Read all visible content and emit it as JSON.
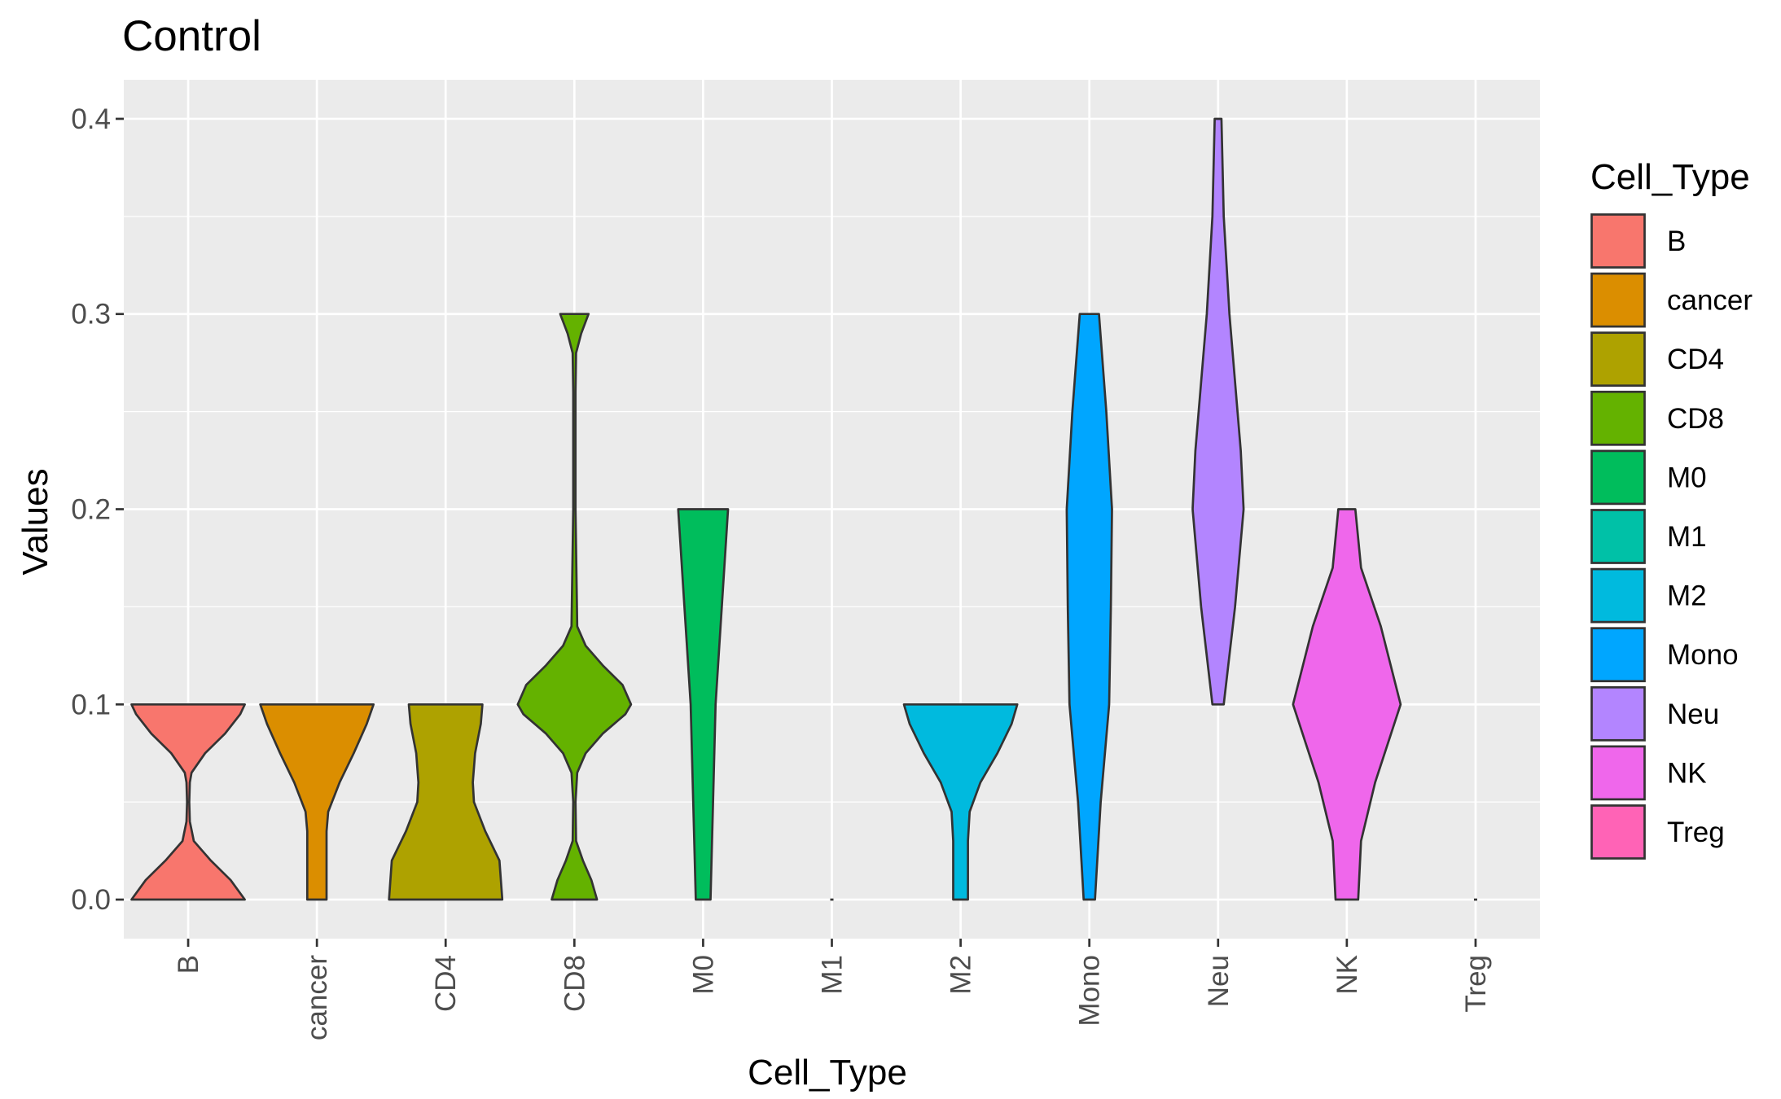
{
  "chart_data": {
    "type": "violin",
    "title": "Control",
    "xlabel": "Cell_Type",
    "ylabel": "Values",
    "ylim": [
      -0.02,
      0.42
    ],
    "yticks": [
      "0.0",
      "0.1",
      "0.2",
      "0.3",
      "0.4"
    ],
    "ytick_values": [
      0.0,
      0.1,
      0.2,
      0.3,
      0.4
    ],
    "grid": true,
    "legend": {
      "title": "Cell_Type",
      "placement": "right"
    },
    "categories": [
      "B",
      "cancer",
      "CD4",
      "CD8",
      "M0",
      "M1",
      "M2",
      "Mono",
      "Neu",
      "NK",
      "Treg"
    ],
    "series": [
      {
        "name": "B",
        "color": "#F8766D",
        "profile": [
          [
            0.0,
            1.0
          ],
          [
            0.01,
            0.75
          ],
          [
            0.02,
            0.4
          ],
          [
            0.03,
            0.1
          ],
          [
            0.04,
            0.03
          ],
          [
            0.05,
            0.02
          ],
          [
            0.06,
            0.03
          ],
          [
            0.065,
            0.06
          ],
          [
            0.075,
            0.3
          ],
          [
            0.085,
            0.65
          ],
          [
            0.095,
            0.92
          ],
          [
            0.1,
            1.0
          ]
        ]
      },
      {
        "name": "cancer",
        "color": "#DB8E00",
        "profile": [
          [
            0.0,
            0.17
          ],
          [
            0.02,
            0.17
          ],
          [
            0.035,
            0.17
          ],
          [
            0.045,
            0.2
          ],
          [
            0.06,
            0.4
          ],
          [
            0.075,
            0.65
          ],
          [
            0.09,
            0.88
          ],
          [
            0.1,
            1.0
          ]
        ]
      },
      {
        "name": "CD4",
        "color": "#AEA200",
        "profile": [
          [
            0.0,
            1.0
          ],
          [
            0.02,
            0.95
          ],
          [
            0.035,
            0.7
          ],
          [
            0.05,
            0.5
          ],
          [
            0.06,
            0.48
          ],
          [
            0.075,
            0.52
          ],
          [
            0.09,
            0.62
          ],
          [
            0.1,
            0.65
          ]
        ]
      },
      {
        "name": "CD8",
        "color": "#64B200",
        "profile": [
          [
            0.0,
            0.4
          ],
          [
            0.01,
            0.3
          ],
          [
            0.02,
            0.15
          ],
          [
            0.03,
            0.03
          ],
          [
            0.05,
            0.02
          ],
          [
            0.065,
            0.05
          ],
          [
            0.075,
            0.2
          ],
          [
            0.085,
            0.5
          ],
          [
            0.095,
            0.9
          ],
          [
            0.1,
            1.0
          ],
          [
            0.11,
            0.85
          ],
          [
            0.12,
            0.5
          ],
          [
            0.13,
            0.2
          ],
          [
            0.14,
            0.05
          ],
          [
            0.2,
            0.02
          ],
          [
            0.26,
            0.02
          ],
          [
            0.28,
            0.03
          ],
          [
            0.29,
            0.12
          ],
          [
            0.3,
            0.25
          ]
        ]
      },
      {
        "name": "M0",
        "color": "#00BD5C",
        "profile": [
          [
            0.0,
            0.13
          ],
          [
            0.1,
            0.22
          ],
          [
            0.2,
            0.44
          ]
        ]
      },
      {
        "name": "M1",
        "color": "#00C1A7",
        "profile": [
          [
            0.0,
            0.02
          ]
        ]
      },
      {
        "name": "M2",
        "color": "#00BADE",
        "profile": [
          [
            0.0,
            0.13
          ],
          [
            0.03,
            0.13
          ],
          [
            0.045,
            0.16
          ],
          [
            0.06,
            0.35
          ],
          [
            0.075,
            0.65
          ],
          [
            0.09,
            0.9
          ],
          [
            0.1,
            1.0
          ]
        ]
      },
      {
        "name": "Mono",
        "color": "#00A6FF",
        "profile": [
          [
            0.0,
            0.1
          ],
          [
            0.05,
            0.2
          ],
          [
            0.1,
            0.35
          ],
          [
            0.15,
            0.38
          ],
          [
            0.2,
            0.4
          ],
          [
            0.25,
            0.3
          ],
          [
            0.3,
            0.17
          ]
        ]
      },
      {
        "name": "Neu",
        "color": "#B385FF",
        "profile": [
          [
            0.1,
            0.1
          ],
          [
            0.15,
            0.3
          ],
          [
            0.2,
            0.45
          ],
          [
            0.23,
            0.4
          ],
          [
            0.3,
            0.2
          ],
          [
            0.35,
            0.1
          ],
          [
            0.4,
            0.06
          ]
        ]
      },
      {
        "name": "NK",
        "color": "#EF67EB",
        "profile": [
          [
            0.0,
            0.2
          ],
          [
            0.03,
            0.25
          ],
          [
            0.06,
            0.5
          ],
          [
            0.1,
            0.95
          ],
          [
            0.14,
            0.6
          ],
          [
            0.17,
            0.25
          ],
          [
            0.2,
            0.15
          ]
        ]
      },
      {
        "name": "Treg",
        "color": "#FF63B6",
        "profile": [
          [
            0.0,
            0.02
          ]
        ]
      }
    ]
  }
}
